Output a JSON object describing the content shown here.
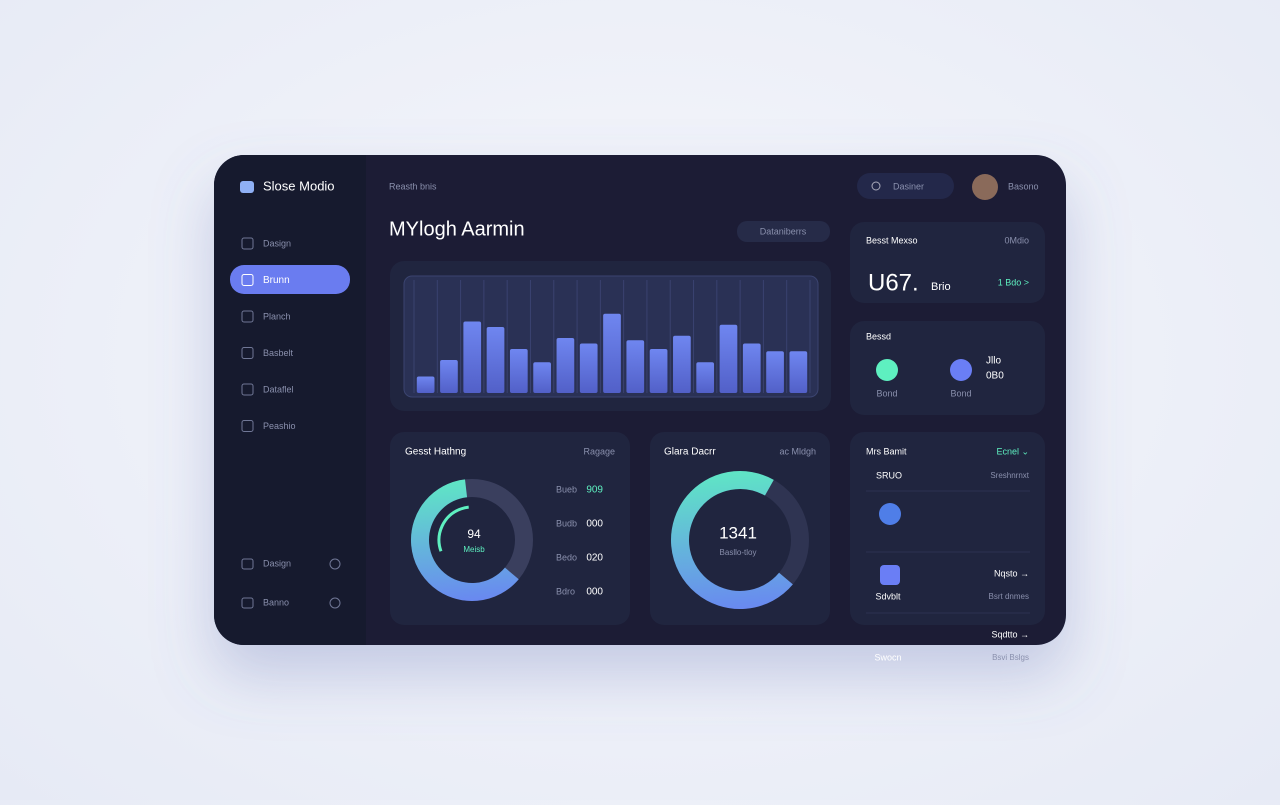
{
  "sidebar": {
    "brand": "Slose Modio",
    "nav": [
      "Dasign",
      "Brunn",
      "Planch",
      "Basbelt",
      "Dataflel",
      "Peashio"
    ],
    "footer": [
      "Dasign",
      "Banno"
    ]
  },
  "topbar": {
    "breadcrumb": "Reasth bnis",
    "search": "Dasiner",
    "user": "Basono"
  },
  "main": {
    "title": "MYlogh Aarmin",
    "button": "Dataniberrs",
    "activity": {
      "values": [
        15,
        30,
        65,
        60,
        40,
        28,
        50,
        45,
        72,
        48,
        40,
        52,
        28,
        62,
        45,
        38,
        38
      ],
      "ylim": [
        0,
        100
      ]
    },
    "gauge_card": {
      "title": "Gesst Hathng",
      "action": "Ragage",
      "center_value": "94",
      "center_label": "Meisb",
      "progress": 62,
      "legend": [
        {
          "label": "Bueb",
          "value": "909"
        },
        {
          "label": "Budb",
          "value": "000"
        },
        {
          "label": "Bedo",
          "value": "020"
        },
        {
          "label": "Bdro",
          "value": "000"
        }
      ]
    },
    "ring_card": {
      "title": "Glara Dacrr",
      "action": "ac Mldgh",
      "center_value": "1341",
      "center_label": "Basllo-tloy",
      "progress": 72
    }
  },
  "side": {
    "stat": {
      "title": "Besst Mexso",
      "action": "0Mdio",
      "value": "U67.",
      "unit": "Brio",
      "link": "1 Bdo >"
    },
    "status": {
      "title": "Bessd",
      "items": [
        "Bond",
        "Bond"
      ],
      "values": [
        "Jllo",
        "0B0"
      ]
    },
    "list": {
      "title": "Mrs Bamit",
      "filter": "Ecnel ⌄",
      "rows": [
        {
          "label": "SRUO",
          "value": "",
          "detail": "Sreshnrnxt"
        },
        {
          "label": "Sdvblt",
          "value": "Nqsto →",
          "detail": "Bsrt dnmes"
        },
        {
          "label": "Swocn",
          "value": "Sqdtto →",
          "detail": "Bsvi Bslgs"
        }
      ]
    }
  }
}
